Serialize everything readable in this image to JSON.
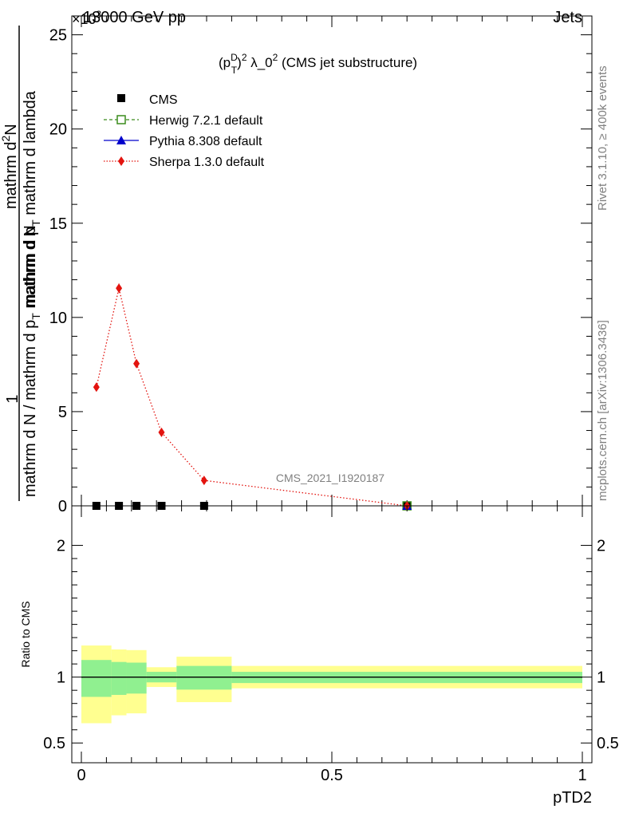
{
  "header": {
    "left": "13000 GeV pp",
    "right": "Jets"
  },
  "side_text": {
    "rivet": "Rivet 3.1.10, ≥ 400k events",
    "mcplots": "mcplots.cern.ch [arXiv:1306.3436]"
  },
  "colors": {
    "cms": "#000000",
    "herwig": "#3a8c1c",
    "pythia": "#0000cc",
    "sherpa": "#e3140f",
    "band_inner": "#90f090",
    "band_outer": "#ffff90"
  },
  "chart_data": [
    {
      "type": "scatter",
      "title": "(p_T^D)^2 λ_0^2 (CMS jet substructure)",
      "title_parts": {
        "p": "(p",
        "sup_d": "D",
        "sub_t": "T",
        "close": ")",
        "sup_2": "2",
        "rest": " λ_0",
        "sup_2b": "2",
        "tail": " (CMS jet substructure)"
      },
      "watermark": "CMS_2021_I1920187",
      "ylabel": "1 / mathrm d N / mathrm d p_T mathrm d N / mathrm d p_T mathrm d lambda",
      "ylabel_parts": {
        "one": "1",
        "den": "mathrm d N / mathrm d p",
        "den_sub": "T",
        "den_rest": "mathrm d N",
        "num": "mathrm d",
        "num_sup": "2",
        "num_rest": "N",
        "num2": "mathrm d p",
        "num2_sub": "T",
        "num2_rest": " mathrm d lambda"
      },
      "exponent_label": "×10",
      "exponent": "3",
      "xlim": [
        0,
        1
      ],
      "ylim": [
        0,
        26000
      ],
      "yticks": [
        0,
        5000,
        10000,
        15000,
        20000,
        25000
      ],
      "ytick_labels": [
        "0",
        "5",
        "10",
        "15",
        "20",
        "25"
      ],
      "legend_position": "top-left",
      "series": [
        {
          "name": "CMS",
          "x": [
            0.03,
            0.075,
            0.11,
            0.16,
            0.245,
            0.65
          ],
          "y": [
            0,
            0,
            0,
            0,
            0,
            0
          ],
          "marker": "square"
        },
        {
          "name": "Herwig 7.2.1 default",
          "x": [
            0.65
          ],
          "y": [
            0
          ],
          "marker": "open-square",
          "line": "dashed"
        },
        {
          "name": "Pythia 8.308 default",
          "x": [
            0.65
          ],
          "y": [
            0
          ],
          "marker": "triangle",
          "line": "solid"
        },
        {
          "name": "Sherpa 1.3.0 default",
          "x": [
            0.03,
            0.075,
            0.11,
            0.16,
            0.245,
            0.65
          ],
          "y": [
            6300,
            11550,
            7550,
            3900,
            1350,
            0
          ],
          "marker": "diamond",
          "line": "dotted"
        }
      ]
    },
    {
      "type": "area",
      "ylabel": "Ratio to CMS",
      "xlabel": "pTD2",
      "xlim": [
        0,
        1
      ],
      "ylim": [
        0.35,
        2.3
      ],
      "xticks": [
        0,
        0.5,
        1
      ],
      "xtick_labels": [
        "0",
        "0.5",
        "1"
      ],
      "yticks": [
        0.5,
        1,
        2
      ],
      "ytick_labels": [
        "0.5",
        "1",
        "2"
      ],
      "bands": [
        {
          "x0": 0.0,
          "x1": 0.06,
          "inner": [
            0.85,
            1.13
          ],
          "outer": [
            0.65,
            1.24
          ]
        },
        {
          "x0": 0.06,
          "x1": 0.09,
          "inner": [
            0.865,
            1.115
          ],
          "outer": [
            0.71,
            1.21
          ]
        },
        {
          "x0": 0.09,
          "x1": 0.13,
          "inner": [
            0.875,
            1.11
          ],
          "outer": [
            0.725,
            1.205
          ]
        },
        {
          "x0": 0.13,
          "x1": 0.19,
          "inner": [
            0.96,
            1.04
          ],
          "outer": [
            0.925,
            1.075
          ]
        },
        {
          "x0": 0.19,
          "x1": 0.3,
          "inner": [
            0.905,
            1.085
          ],
          "outer": [
            0.81,
            1.155
          ]
        },
        {
          "x0": 0.3,
          "x1": 1.0,
          "inner": [
            0.955,
            1.04
          ],
          "outer": [
            0.915,
            1.085
          ]
        }
      ]
    }
  ]
}
